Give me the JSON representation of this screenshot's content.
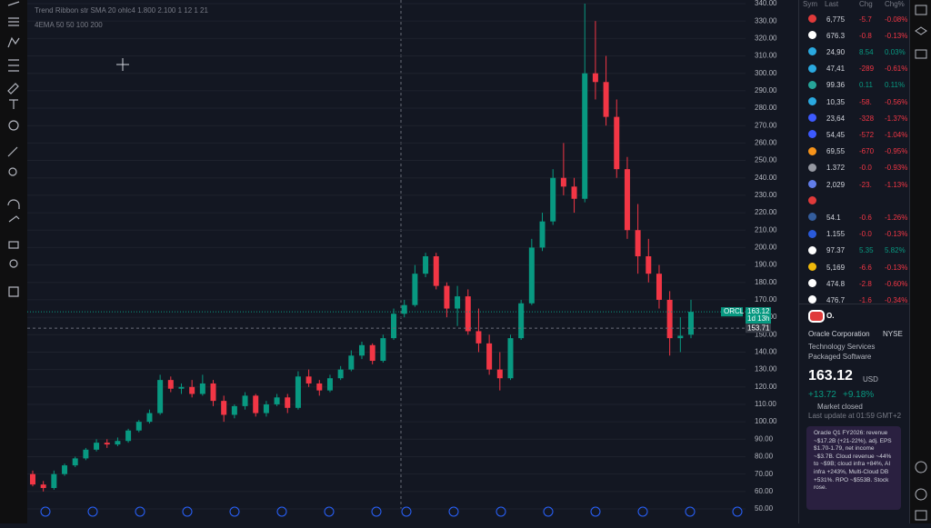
{
  "chart_data": {
    "type": "candlestick",
    "legend_lines": [
      "Trend Ribbon str SMA 20 ohlc4 1.800 2.100 1 12 1 21",
      "4EMA 50 50 100 200"
    ],
    "up_color": "#089981",
    "down_color": "#f23645",
    "ylim": [
      50,
      340
    ],
    "yticks": [
      50,
      60,
      70,
      80,
      90,
      100,
      110,
      120,
      130,
      140,
      150,
      160,
      170,
      180,
      190,
      200,
      210,
      220,
      230,
      240,
      250,
      260,
      270,
      280,
      290,
      300,
      310,
      320,
      330,
      340
    ],
    "yticks_labels": [
      "50.00",
      "60.00",
      "70.00",
      "80.00",
      "90.00",
      "100.00",
      "110.00",
      "120.00",
      "130.00",
      "140.00",
      "150.00",
      "160.00",
      "170.00",
      "180.00",
      "190.00",
      "200.00",
      "210.00",
      "220.00",
      "230.00",
      "240.00",
      "250.00",
      "260.00",
      "270.00",
      "280.00",
      "290.00",
      "300.00",
      "310.00",
      "320.00",
      "330.00",
      "340.00"
    ],
    "open": [
      70,
      64,
      62,
      70,
      75,
      79,
      84,
      88,
      87,
      89,
      95,
      100,
      105,
      124,
      119,
      120,
      116,
      122,
      112,
      104,
      109,
      115,
      105,
      110,
      114,
      108,
      126,
      122,
      118,
      125,
      130,
      138,
      144,
      135,
      148,
      162,
      167,
      185,
      195,
      178,
      165,
      172,
      152,
      145,
      130,
      125,
      148,
      168,
      200,
      215,
      240,
      235,
      228,
      300,
      295,
      275,
      245,
      210,
      195,
      185,
      170,
      148,
      150
    ],
    "high": [
      72,
      66,
      72,
      76,
      80,
      85,
      90,
      90,
      91,
      96,
      101,
      107,
      127,
      126,
      122,
      124,
      127,
      124,
      115,
      110,
      117,
      116,
      112,
      116,
      116,
      129,
      130,
      124,
      127,
      132,
      141,
      146,
      145,
      150,
      165,
      170,
      190,
      197,
      197,
      180,
      178,
      176,
      165,
      150,
      140,
      150,
      170,
      205,
      220,
      245,
      260,
      240,
      340,
      330,
      310,
      285,
      252,
      225,
      205,
      190,
      175,
      160,
      170
    ],
    "low": [
      63,
      60,
      61,
      69,
      74,
      78,
      83,
      85,
      86,
      88,
      94,
      99,
      104,
      117,
      116,
      114,
      115,
      109,
      100,
      102,
      107,
      103,
      103,
      109,
      105,
      107,
      120,
      115,
      117,
      124,
      129,
      136,
      133,
      134,
      147,
      160,
      166,
      183,
      176,
      160,
      155,
      150,
      140,
      127,
      118,
      124,
      147,
      167,
      198,
      213,
      230,
      220,
      226,
      285,
      270,
      240,
      205,
      185,
      180,
      165,
      138,
      140,
      148
    ],
    "close": [
      64,
      62,
      70,
      75,
      79,
      84,
      88,
      87,
      89,
      95,
      100,
      105,
      124,
      119,
      120,
      116,
      122,
      112,
      104,
      109,
      115,
      105,
      110,
      114,
      108,
      126,
      122,
      118,
      125,
      130,
      138,
      144,
      135,
      148,
      162,
      167,
      185,
      195,
      178,
      165,
      172,
      152,
      145,
      130,
      125,
      148,
      168,
      200,
      215,
      240,
      235,
      228,
      300,
      295,
      275,
      245,
      210,
      195,
      185,
      170,
      148,
      149.4,
      163.12
    ],
    "symbol_tag": "ORCL",
    "last_price": 163.12,
    "last_price_label": "163.12",
    "countdown": "1d 13h",
    "crosshair_price": 153.71,
    "crosshair_price_label": "153.71"
  },
  "watchlist": {
    "headers": [
      "Sym",
      "Last",
      "Chg",
      "Chg%"
    ],
    "rows": [
      {
        "icon": "#e03a3a",
        "last": "6,775",
        "chg": "-5.7",
        "pct": "-0.08%",
        "color": "#f23645"
      },
      {
        "icon": "#ffffff",
        "last": "676.3",
        "chg": "-0.8",
        "pct": "-0.13%",
        "color": "#f23645"
      },
      {
        "icon": "#2aa9e0",
        "last": "24,90",
        "chg": "8.54",
        "pct": "0.03%",
        "color": "#089981"
      },
      {
        "icon": "#2aa9e0",
        "last": "47,41",
        "chg": "-289",
        "pct": "-0.61%",
        "color": "#f23645"
      },
      {
        "icon": "#26a69a",
        "last": "99.36",
        "chg": "0.11",
        "pct": "0.11%",
        "color": "#089981"
      },
      {
        "icon": "#2aa9e0",
        "last": "10,35",
        "chg": "-58.",
        "pct": "-0.56%",
        "color": "#f23645"
      },
      {
        "icon": "#3d5afe",
        "last": "23,64",
        "chg": "-328",
        "pct": "-1.37%",
        "color": "#f23645"
      },
      {
        "icon": "#3d5afe",
        "last": "54,45",
        "chg": "-572",
        "pct": "-1.04%",
        "color": "#f23645"
      },
      {
        "icon": "#f7931a",
        "last": "69,55",
        "chg": "-670",
        "pct": "-0.95%",
        "color": "#f23645"
      },
      {
        "icon": "#9598a1",
        "last": "1.372",
        "chg": "-0.0",
        "pct": "-0.93%",
        "color": "#f23645"
      },
      {
        "icon": "#627eea",
        "last": "2,029",
        "chg": "-23.",
        "pct": "-1.13%",
        "color": "#f23645"
      },
      {
        "icon": "#e03a3a",
        "last": "",
        "chg": "",
        "pct": "",
        "color": "#f23645"
      },
      {
        "icon": "#345d9d",
        "last": "54.1",
        "chg": "-0.6",
        "pct": "-1.26%",
        "color": "#f23645"
      },
      {
        "icon": "#2a5ada",
        "last": "1.155",
        "chg": "-0.0",
        "pct": "-0.13%",
        "color": "#f23645"
      },
      {
        "icon": "#ffffff",
        "last": "97.37",
        "chg": "5.35",
        "pct": "5.82%",
        "color": "#089981"
      },
      {
        "icon": "#f0b90b",
        "last": "5,169",
        "chg": "-6.6",
        "pct": "-0.13%",
        "color": "#f23645"
      },
      {
        "icon": "#ffffff",
        "last": "474.8",
        "chg": "-2.8",
        "pct": "-0.60%",
        "color": "#f23645"
      },
      {
        "icon": "#ffffff",
        "last": "476.7",
        "chg": "-1.6",
        "pct": "-0.34%",
        "color": "#f23645"
      }
    ]
  },
  "details": {
    "symbol": "O.",
    "name": "Oracle Corporation",
    "exchange": "NYSE",
    "sector": "Technology Services",
    "industry": "Packaged Software",
    "price": "163.12",
    "currency": "USD",
    "change": "+13.72",
    "change_pct": "+9.18%",
    "status": "Market closed",
    "updated": "Last update at 01:59 GMT+2",
    "news": "Oracle Q1 FY2026: revenue ~$17.2B (+21-22%), adj. EPS $1.70-1.79, net income ~$3.7B. Cloud revenue ~44% to ~$9B; cloud infra +84%, AI infra +243%, Multi-Cloud DB +531%. RPO ~$553B. Stock rose."
  }
}
